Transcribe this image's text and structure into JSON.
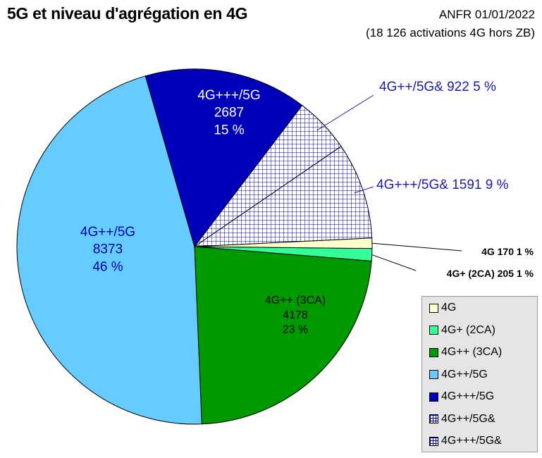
{
  "chart_data": {
    "type": "pie",
    "title": "5G et niveau d'agrégation en 4G",
    "source_line1": "ANFR 01/01/2022",
    "source_line2": "(18 126 activations 4G hors ZB)",
    "slices": [
      {
        "name": "4G",
        "value": 170,
        "percent": "1 %",
        "color": "#ffffcc",
        "pattern": "none",
        "label": "4G 170 1 %",
        "label_color": "#000000"
      },
      {
        "name": "4G+ (2CA)",
        "value": 205,
        "percent": "1 %",
        "color": "#33ff99",
        "pattern": "none",
        "label": "4G+ (2CA) 205 1 %",
        "label_color": "#000000"
      },
      {
        "name": "4G++ (3CA)",
        "value": 4178,
        "percent": "23 %",
        "color": "#009900",
        "pattern": "none",
        "label_lines": [
          "4G++ (3CA)",
          "4178",
          "23 %"
        ],
        "label_color": "#000000"
      },
      {
        "name": "4G++/5G",
        "value": 8373,
        "percent": "46 %",
        "color": "#66ccff",
        "pattern": "none",
        "label_lines": [
          "4G++/5G",
          "8373",
          "46 %"
        ],
        "label_color": "#0000aa"
      },
      {
        "name": "4G+++/5G",
        "value": 2687,
        "percent": "15 %",
        "color": "#0000bb",
        "pattern": "none",
        "label_lines": [
          "4G+++/5G",
          "2687",
          "15 %"
        ],
        "label_color": "#ffffff"
      },
      {
        "name": "4G++/5G&",
        "value": 922,
        "percent": "5 %",
        "color": "#0000aa",
        "pattern": "grid",
        "label": "4G++/5G& 922 5 %",
        "label_color": "#1a1ab3"
      },
      {
        "name": "4G+++/5G&",
        "value": 1591,
        "percent": "9 %",
        "color": "#0000aa",
        "pattern": "grid",
        "label": "4G+++/5G& 1591 9 %",
        "label_color": "#1a1ab3"
      }
    ],
    "legend_placement": "bottom-right",
    "legend": [
      "4G",
      "4G+ (2CA)",
      "4G++ (3CA)",
      "4G++/5G",
      "4G+++/5G",
      "4G++/5G&",
      "4G+++/5G&"
    ]
  }
}
